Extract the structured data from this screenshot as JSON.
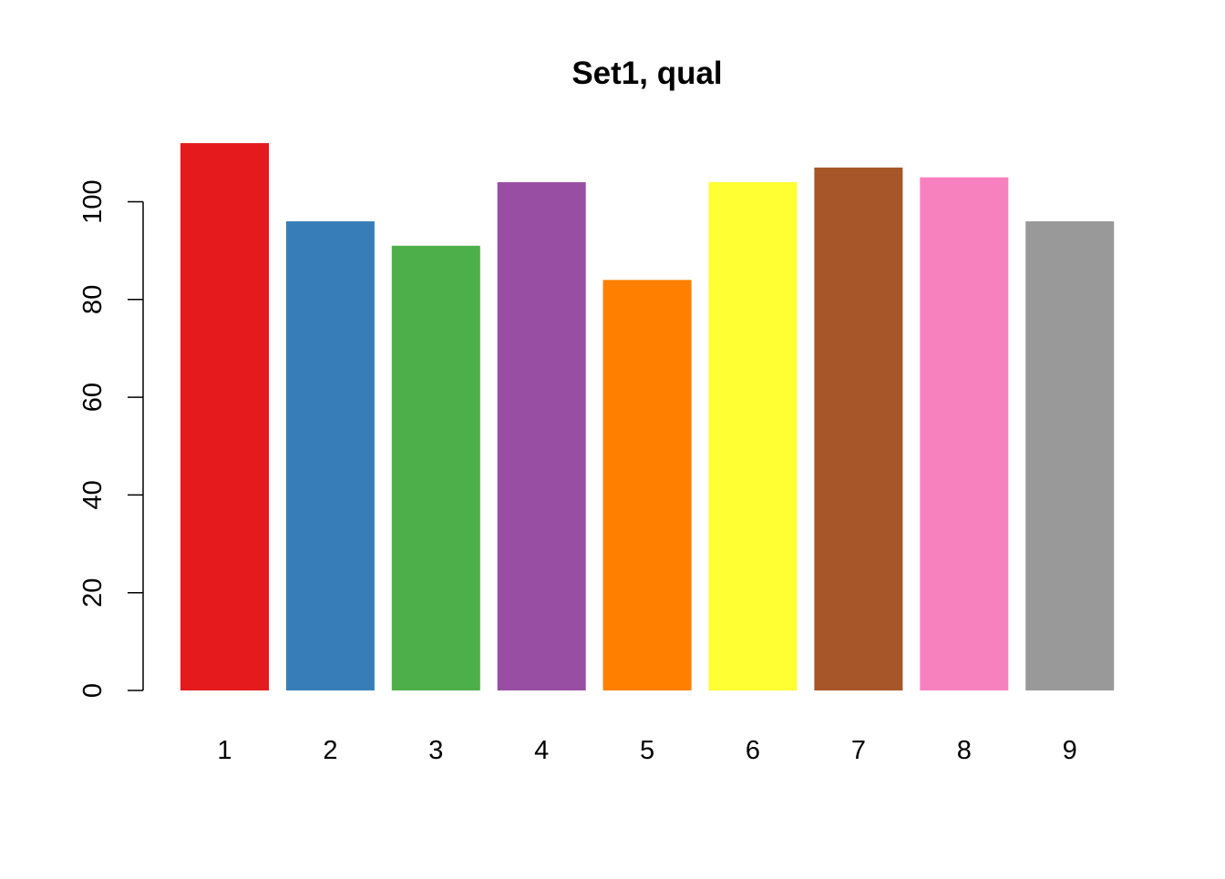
{
  "chart_data": {
    "type": "bar",
    "title": "Set1, qual",
    "xlabel": "",
    "ylabel": "",
    "categories": [
      "1",
      "2",
      "3",
      "4",
      "5",
      "6",
      "7",
      "8",
      "9"
    ],
    "values": [
      112,
      96,
      91,
      104,
      84,
      104,
      107,
      105,
      96
    ],
    "colors": [
      "#E41A1C",
      "#377EB8",
      "#4DAF4A",
      "#984EA3",
      "#FF7F00",
      "#FFFF33",
      "#A65628",
      "#F781BF",
      "#999999"
    ],
    "ylim": [
      0,
      112
    ],
    "yticks": [
      0,
      20,
      40,
      60,
      80,
      100
    ],
    "ytick_labels": [
      "0",
      "20",
      "40",
      "60",
      "80",
      "100"
    ],
    "grid": false,
    "legend": "none"
  }
}
